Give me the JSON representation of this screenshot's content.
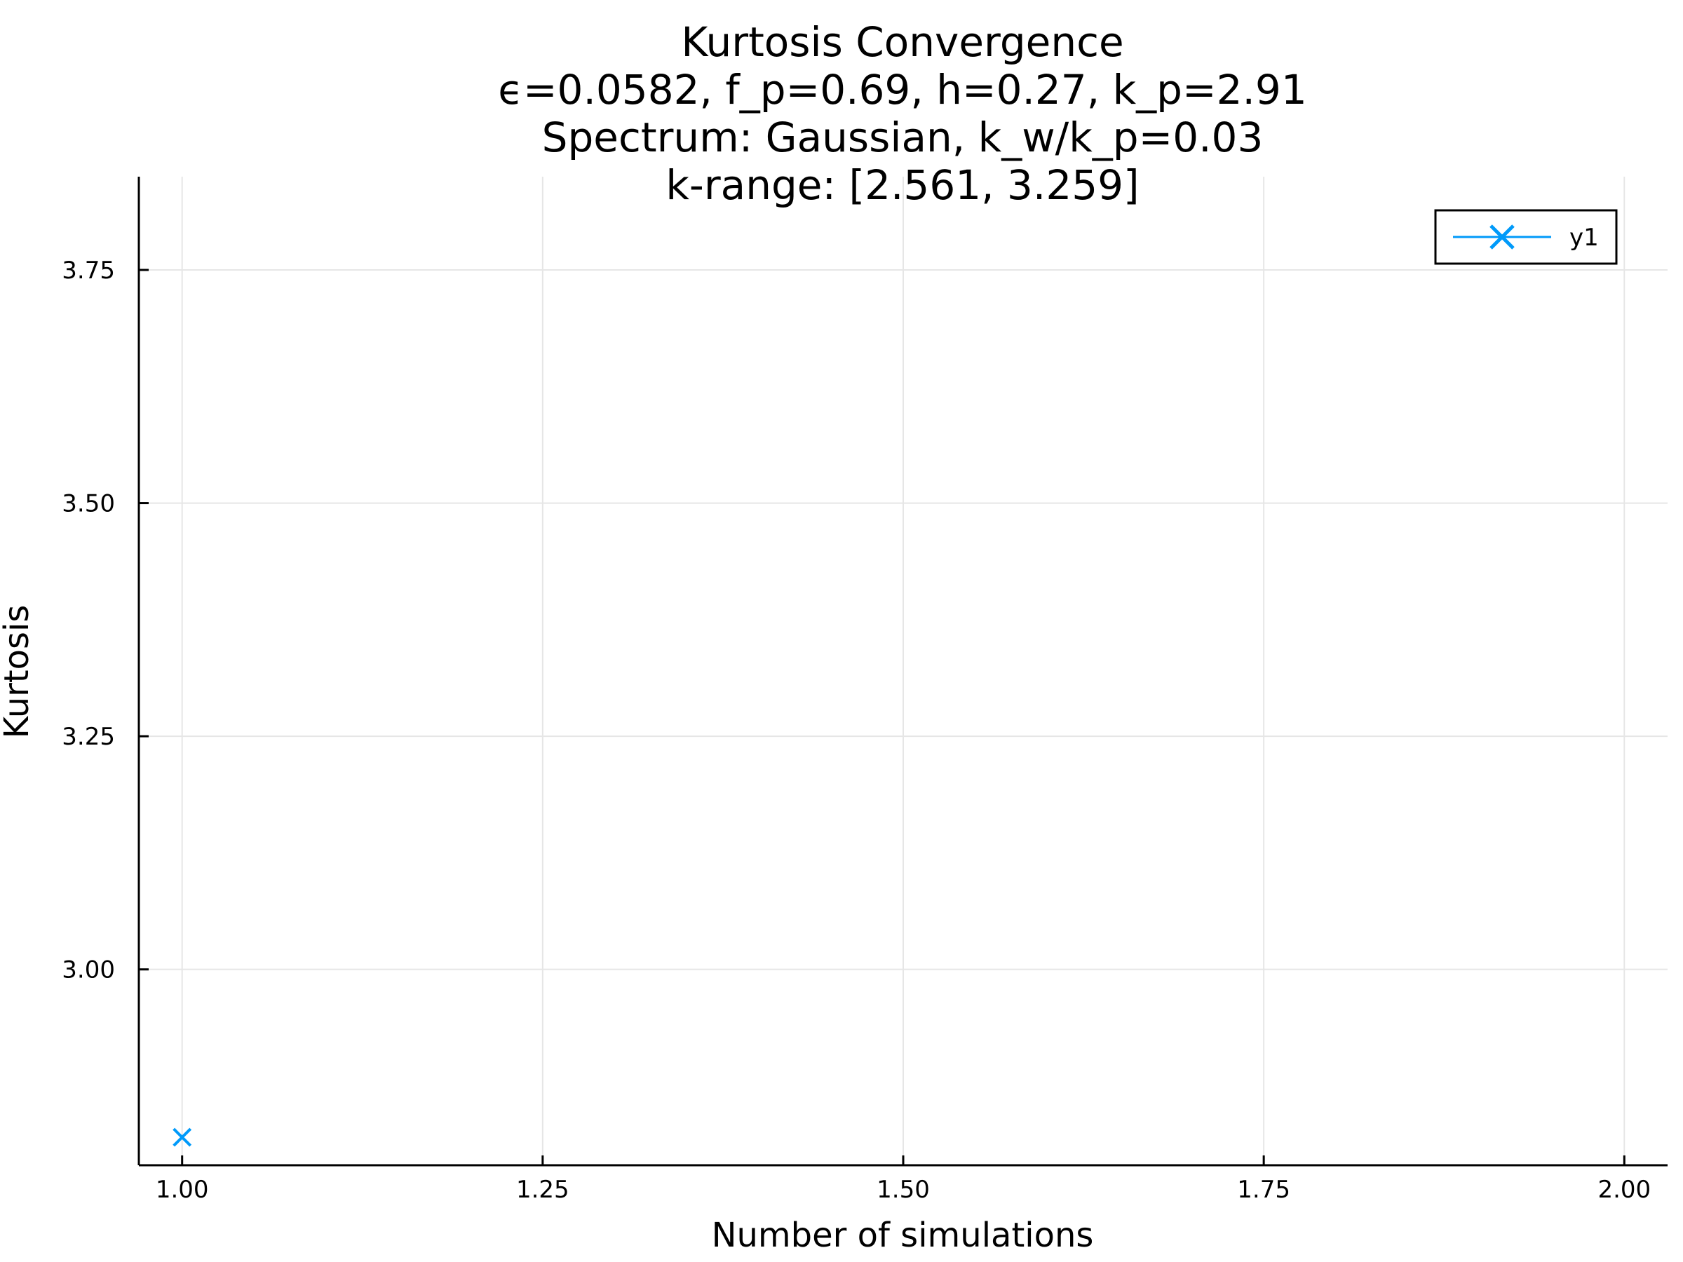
{
  "chart_data": {
    "type": "scatter",
    "title_lines": [
      "Kurtosis Convergence",
      "ϵ=0.0582, f_p=0.69, h=0.27, k_p=2.91",
      "Spectrum: Gaussian, k_w/k_p=0.03",
      "k-range: [2.561, 3.259]"
    ],
    "xlabel": "Number of simulations",
    "ylabel": "Kurtosis",
    "xlim": [
      0.97,
      2.03
    ],
    "ylim": [
      2.79,
      3.85
    ],
    "xticks": [
      1.0,
      1.25,
      1.5,
      1.75,
      2.0
    ],
    "xtick_labels": [
      "1.00",
      "1.25",
      "1.50",
      "1.75",
      "2.00"
    ],
    "yticks": [
      3.0,
      3.25,
      3.5,
      3.75
    ],
    "ytick_labels": [
      "3.00",
      "3.25",
      "3.50",
      "3.75"
    ],
    "grid": true,
    "legend_position": "top-right",
    "series": [
      {
        "name": "y1",
        "color": "#009AFA",
        "marker": "x",
        "points": [
          {
            "x": 1.0,
            "y": 2.82
          }
        ]
      }
    ]
  }
}
